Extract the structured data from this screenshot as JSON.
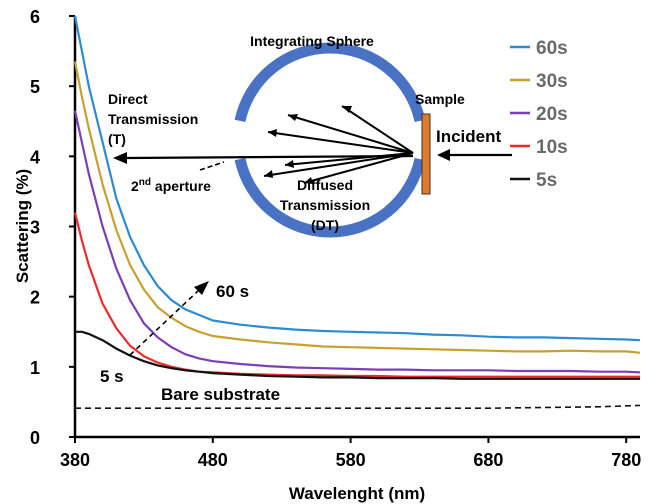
{
  "chart_data": {
    "type": "line",
    "title": "",
    "xlabel": "Wavelenght (nm)",
    "ylabel": "Scattering (%)",
    "xlim": [
      380,
      790
    ],
    "ylim": [
      0,
      6
    ],
    "xticks": [
      380,
      480,
      580,
      680,
      780
    ],
    "yticks": [
      0,
      1,
      2,
      3,
      4,
      5,
      6
    ],
    "grid": false,
    "legend_position": "top-right",
    "series": [
      {
        "name": "60s",
        "color": "#2E8BD0",
        "x": [
          380,
          385,
          390,
          400,
          410,
          420,
          430,
          440,
          450,
          460,
          470,
          480,
          500,
          520,
          540,
          560,
          580,
          600,
          620,
          640,
          660,
          680,
          700,
          720,
          740,
          760,
          780,
          790
        ],
        "y": [
          6.0,
          5.5,
          5.0,
          4.2,
          3.4,
          2.85,
          2.45,
          2.15,
          1.95,
          1.82,
          1.74,
          1.66,
          1.6,
          1.56,
          1.53,
          1.51,
          1.5,
          1.49,
          1.48,
          1.46,
          1.45,
          1.43,
          1.42,
          1.42,
          1.41,
          1.4,
          1.39,
          1.38
        ]
      },
      {
        "name": "30s",
        "color": "#C8A02E",
        "x": [
          380,
          385,
          390,
          400,
          410,
          420,
          430,
          440,
          450,
          460,
          470,
          480,
          500,
          520,
          540,
          560,
          580,
          600,
          620,
          640,
          660,
          680,
          700,
          720,
          740,
          760,
          780,
          790
        ],
        "y": [
          5.35,
          4.85,
          4.4,
          3.6,
          2.95,
          2.45,
          2.1,
          1.85,
          1.7,
          1.58,
          1.5,
          1.44,
          1.39,
          1.35,
          1.32,
          1.29,
          1.28,
          1.27,
          1.26,
          1.25,
          1.24,
          1.23,
          1.22,
          1.22,
          1.23,
          1.22,
          1.22,
          1.2
        ]
      },
      {
        "name": "20s",
        "color": "#7B3FB5",
        "x": [
          380,
          385,
          390,
          400,
          410,
          420,
          430,
          440,
          450,
          460,
          470,
          480,
          500,
          520,
          540,
          560,
          580,
          600,
          620,
          640,
          660,
          680,
          700,
          720,
          740,
          760,
          780,
          790
        ],
        "y": [
          4.65,
          4.2,
          3.75,
          3.0,
          2.4,
          1.95,
          1.62,
          1.42,
          1.28,
          1.18,
          1.12,
          1.08,
          1.04,
          1.01,
          0.99,
          0.98,
          0.97,
          0.96,
          0.96,
          0.95,
          0.95,
          0.95,
          0.94,
          0.94,
          0.94,
          0.93,
          0.93,
          0.92
        ]
      },
      {
        "name": "10s",
        "color": "#EE2B2B",
        "x": [
          380,
          385,
          390,
          400,
          410,
          420,
          430,
          440,
          450,
          460,
          470,
          480,
          500,
          520,
          540,
          560,
          580,
          600,
          620,
          640,
          660,
          680,
          700,
          720,
          740,
          760,
          780,
          790
        ],
        "y": [
          3.2,
          2.8,
          2.45,
          1.9,
          1.55,
          1.3,
          1.15,
          1.06,
          1.0,
          0.96,
          0.93,
          0.92,
          0.9,
          0.89,
          0.88,
          0.88,
          0.87,
          0.87,
          0.86,
          0.86,
          0.86,
          0.86,
          0.86,
          0.86,
          0.86,
          0.86,
          0.86,
          0.86
        ]
      },
      {
        "name": "5s",
        "color": "#111111",
        "x": [
          380,
          385,
          390,
          400,
          410,
          420,
          430,
          440,
          450,
          460,
          470,
          480,
          500,
          520,
          540,
          560,
          580,
          600,
          620,
          640,
          660,
          680,
          700,
          720,
          740,
          760,
          780,
          790
        ],
        "y": [
          1.5,
          1.5,
          1.47,
          1.38,
          1.26,
          1.16,
          1.08,
          1.02,
          0.98,
          0.95,
          0.93,
          0.91,
          0.89,
          0.87,
          0.86,
          0.85,
          0.85,
          0.84,
          0.84,
          0.84,
          0.83,
          0.83,
          0.83,
          0.83,
          0.83,
          0.83,
          0.83,
          0.83
        ]
      },
      {
        "name": "Bare substrate",
        "color": "#111111",
        "dashed": true,
        "x": [
          380,
          480,
          580,
          680,
          760,
          790
        ],
        "y": [
          0.41,
          0.41,
          0.41,
          0.41,
          0.43,
          0.45
        ]
      }
    ],
    "annotations": {
      "bare_substrate": "Bare substrate",
      "arrow_start": "5 s",
      "arrow_end": "60 s"
    }
  },
  "inset": {
    "title": "Integrating Sphere",
    "direct_line1": "Direct",
    "direct_line2": "Transmission",
    "direct_line3": "(T)",
    "aperture_main": "2",
    "aperture_sup": "nd",
    "aperture_rest": " aperture",
    "diffused_line1": "Diffused",
    "diffused_line2": "Transmission",
    "diffused_line3": "(DT)",
    "sample": "Sample",
    "incident": "Incident",
    "sphere_color": "#4A72C4",
    "sample_color": "#E07B2A"
  }
}
